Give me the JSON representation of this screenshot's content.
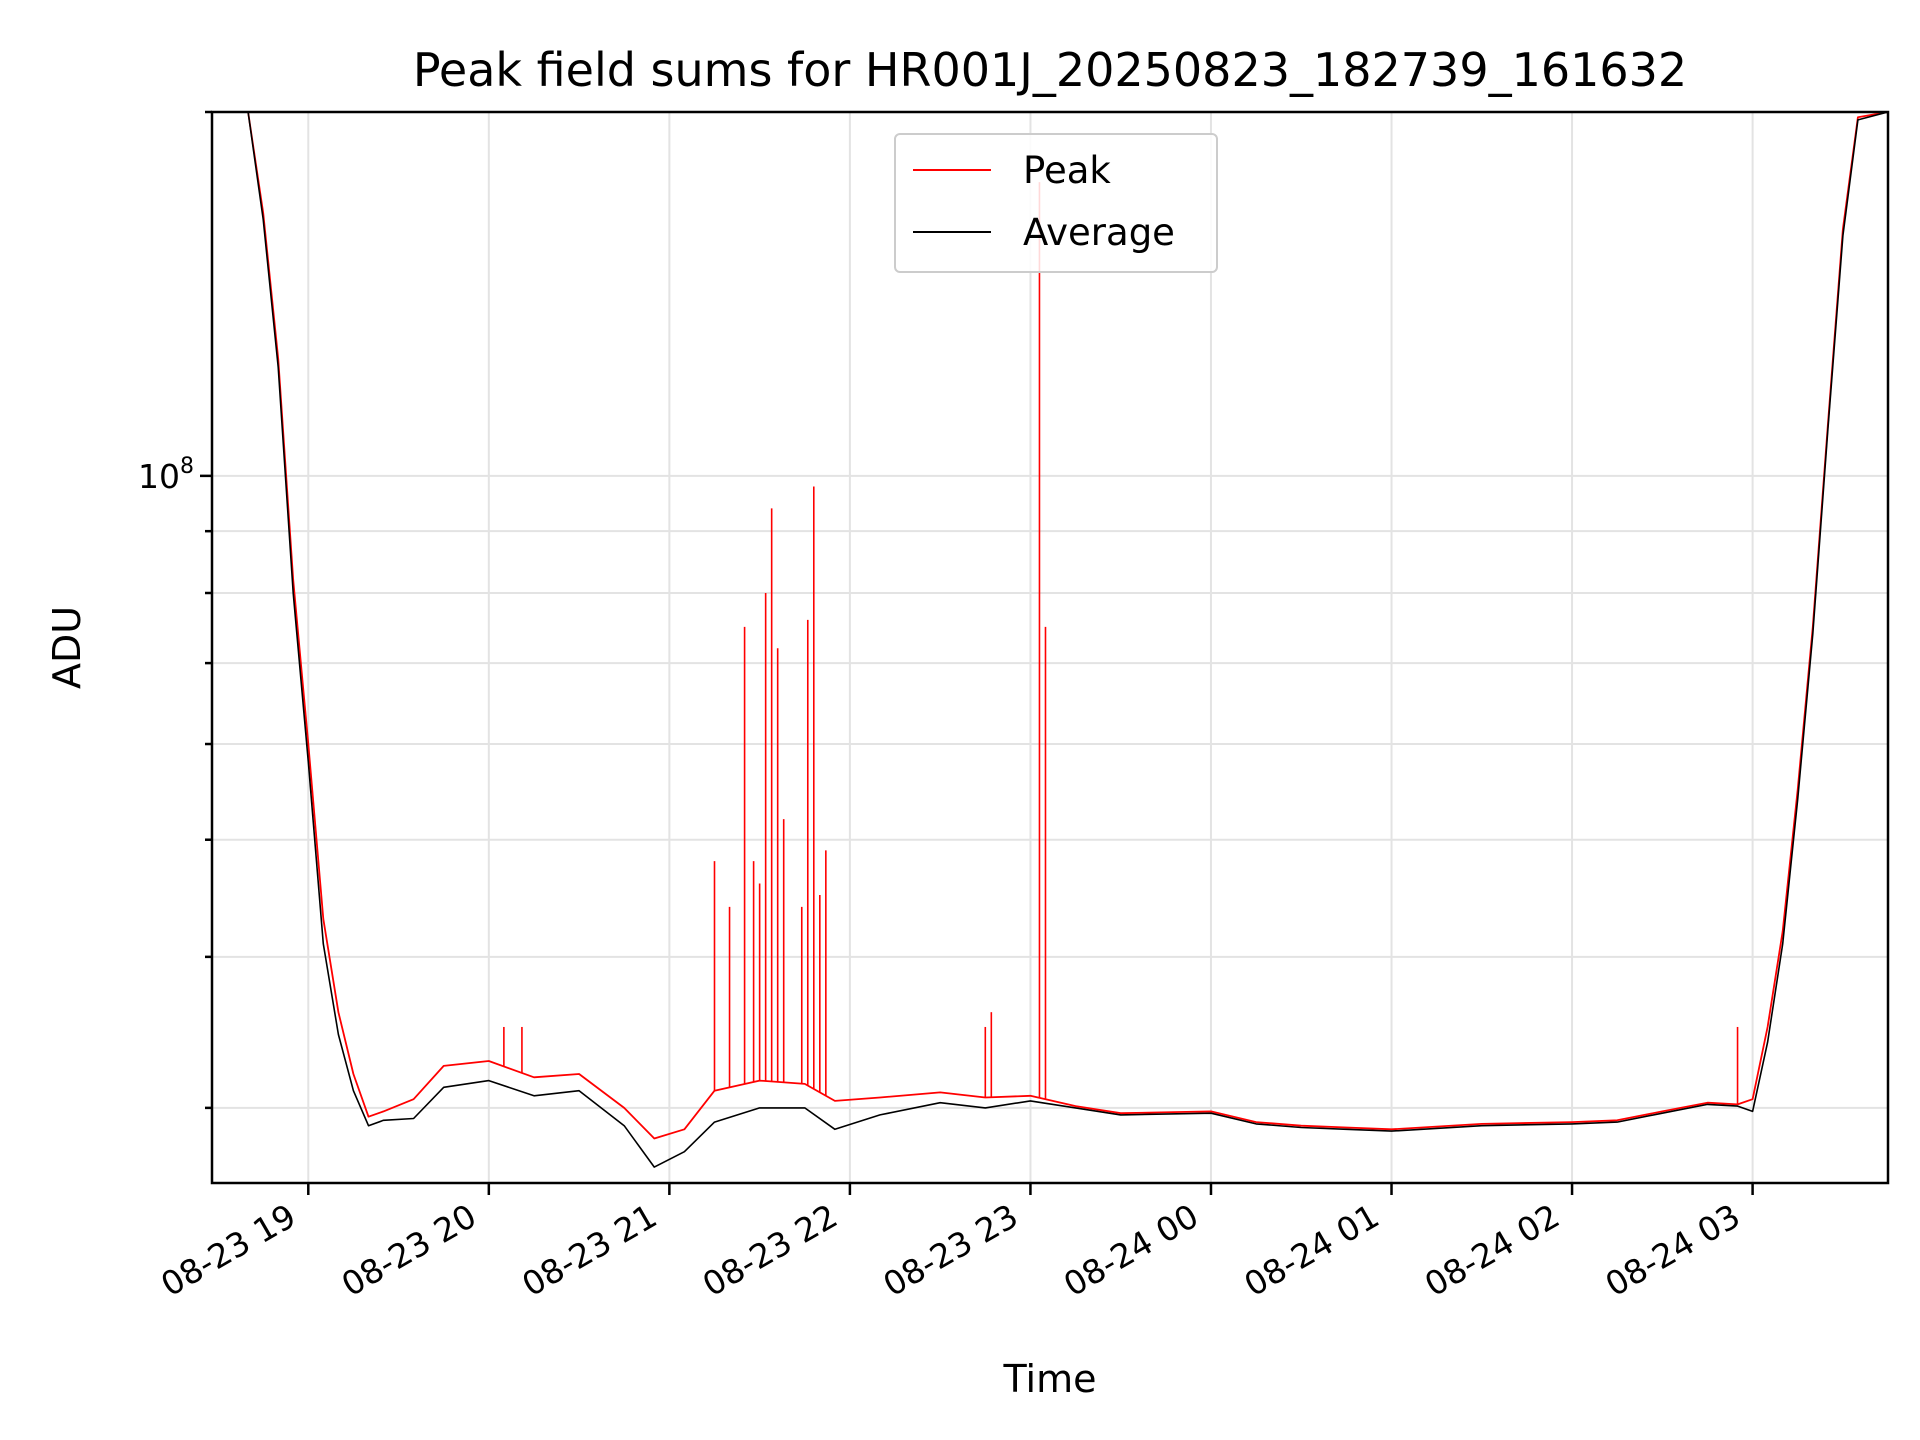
{
  "chart_data": {
    "type": "line",
    "title": "Peak field sums for HR001J_20250823_182739_161632",
    "xlabel": "Time",
    "ylabel": "ADU",
    "y_scale": "log",
    "xlim": [
      "2025-08-23 18:28",
      "2025-08-24 03:45"
    ],
    "ylim": [
      26000000,
      200000000
    ],
    "grid": "major and minor",
    "legend": "upper center",
    "x_tick_labels": [
      "08-23 19",
      "08-23 20",
      "08-23 21",
      "08-23 22",
      "08-23 23",
      "08-24 00",
      "08-24 01",
      "08-24 02",
      "08-24 03"
    ],
    "x_ticks": [
      "2025-08-23 19:00",
      "2025-08-23 20:00",
      "2025-08-23 21:00",
      "2025-08-23 22:00",
      "2025-08-23 23:00",
      "2025-08-24 00:00",
      "2025-08-24 01:00",
      "2025-08-24 02:00",
      "2025-08-24 03:00"
    ],
    "y_major_ticks": [
      {
        "value": 100000000,
        "base": "10",
        "exponent": "8"
      }
    ],
    "y_minor_ticks": [
      30000000,
      40000000,
      50000000,
      60000000,
      70000000,
      80000000,
      90000000,
      200000000
    ],
    "series": [
      {
        "name": "Peak",
        "color": "#ff0000",
        "x": [
          "2025-08-23 18:28",
          "2025-08-23 18:40",
          "2025-08-23 18:45",
          "2025-08-23 18:50",
          "2025-08-23 18:55",
          "2025-08-23 19:00",
          "2025-08-23 19:05",
          "2025-08-23 19:10",
          "2025-08-23 19:15",
          "2025-08-23 19:20",
          "2025-08-23 19:25",
          "2025-08-23 19:35",
          "2025-08-23 19:45",
          "2025-08-23 20:00",
          "2025-08-23 20:15",
          "2025-08-23 20:30",
          "2025-08-23 20:45",
          "2025-08-23 20:55",
          "2025-08-23 21:05",
          "2025-08-23 21:15",
          "2025-08-23 21:30",
          "2025-08-23 21:45",
          "2025-08-23 21:55",
          "2025-08-23 22:10",
          "2025-08-23 22:30",
          "2025-08-23 22:45",
          "2025-08-23 23:00",
          "2025-08-23 23:15",
          "2025-08-23 23:30",
          "2025-08-24 00:00",
          "2025-08-24 00:15",
          "2025-08-24 00:30",
          "2025-08-24 00:45",
          "2025-08-24 01:00",
          "2025-08-24 01:30",
          "2025-08-24 02:00",
          "2025-08-24 02:15",
          "2025-08-24 02:30",
          "2025-08-24 02:45",
          "2025-08-24 02:55",
          "2025-08-24 03:00",
          "2025-08-24 03:05",
          "2025-08-24 03:10",
          "2025-08-24 03:15",
          "2025-08-24 03:20",
          "2025-08-24 03:25",
          "2025-08-24 03:30",
          "2025-08-24 03:35",
          "2025-08-24 03:45"
        ],
        "y": [
          200000000,
          200000000,
          165000000,
          125000000,
          82000000,
          60000000,
          43000000,
          36000000,
          32000000,
          29500000,
          29800000,
          30500000,
          32500000,
          32800000,
          31800000,
          32000000,
          30000000,
          28300000,
          28800000,
          31000000,
          31600000,
          31400000,
          30400000,
          30600000,
          30900000,
          30600000,
          30700000,
          30100000,
          29700000,
          29800000,
          29200000,
          29000000,
          28900000,
          28800000,
          29100000,
          29200000,
          29300000,
          29800000,
          30300000,
          30200000,
          30500000,
          35000000,
          42000000,
          55000000,
          75000000,
          110000000,
          160000000,
          198000000,
          200000000
        ],
        "spikes": [
          {
            "x": "2025-08-23 21:15",
            "y": 48000000
          },
          {
            "x": "2025-08-23 21:20",
            "y": 44000000
          },
          {
            "x": "2025-08-23 21:25",
            "y": 75000000
          },
          {
            "x": "2025-08-23 21:28",
            "y": 48000000
          },
          {
            "x": "2025-08-23 21:30",
            "y": 46000000
          },
          {
            "x": "2025-08-23 21:32",
            "y": 80000000
          },
          {
            "x": "2025-08-23 21:34",
            "y": 94000000
          },
          {
            "x": "2025-08-23 21:36",
            "y": 72000000
          },
          {
            "x": "2025-08-23 21:38",
            "y": 52000000
          },
          {
            "x": "2025-08-23 21:44",
            "y": 44000000
          },
          {
            "x": "2025-08-23 21:46",
            "y": 76000000
          },
          {
            "x": "2025-08-23 21:48",
            "y": 98000000
          },
          {
            "x": "2025-08-23 21:50",
            "y": 45000000
          },
          {
            "x": "2025-08-23 21:52",
            "y": 49000000
          },
          {
            "x": "2025-08-23 22:45",
            "y": 35000000
          },
          {
            "x": "2025-08-23 22:47",
            "y": 36000000
          },
          {
            "x": "2025-08-23 23:03",
            "y": 175000000
          },
          {
            "x": "2025-08-23 23:05",
            "y": 75000000
          },
          {
            "x": "2025-08-23 20:05",
            "y": 35000000
          },
          {
            "x": "2025-08-23 20:11",
            "y": 35000000
          },
          {
            "x": "2025-08-24 02:55",
            "y": 35000000
          }
        ]
      },
      {
        "name": "Average",
        "color": "#000000",
        "x": [
          "2025-08-23 18:28",
          "2025-08-23 18:40",
          "2025-08-23 18:45",
          "2025-08-23 18:50",
          "2025-08-23 18:55",
          "2025-08-23 19:00",
          "2025-08-23 19:05",
          "2025-08-23 19:10",
          "2025-08-23 19:15",
          "2025-08-23 19:20",
          "2025-08-23 19:25",
          "2025-08-23 19:35",
          "2025-08-23 19:45",
          "2025-08-23 20:00",
          "2025-08-23 20:15",
          "2025-08-23 20:30",
          "2025-08-23 20:45",
          "2025-08-23 20:55",
          "2025-08-23 21:05",
          "2025-08-23 21:15",
          "2025-08-23 21:30",
          "2025-08-23 21:45",
          "2025-08-23 21:55",
          "2025-08-23 22:10",
          "2025-08-23 22:30",
          "2025-08-23 22:45",
          "2025-08-23 23:00",
          "2025-08-23 23:15",
          "2025-08-23 23:30",
          "2025-08-24 00:00",
          "2025-08-24 00:15",
          "2025-08-24 00:30",
          "2025-08-24 00:45",
          "2025-08-24 01:00",
          "2025-08-24 01:30",
          "2025-08-24 02:00",
          "2025-08-24 02:15",
          "2025-08-24 02:30",
          "2025-08-24 02:45",
          "2025-08-24 02:55",
          "2025-08-24 03:00",
          "2025-08-24 03:05",
          "2025-08-24 03:10",
          "2025-08-24 03:15",
          "2025-08-24 03:20",
          "2025-08-24 03:25",
          "2025-08-24 03:30",
          "2025-08-24 03:35",
          "2025-08-24 03:45"
        ],
        "y": [
          200000000,
          200000000,
          163000000,
          123000000,
          80000000,
          58000000,
          41000000,
          34500000,
          31000000,
          29000000,
          29300000,
          29400000,
          31200000,
          31600000,
          30700000,
          31000000,
          29000000,
          26800000,
          27600000,
          29200000,
          30000000,
          30000000,
          28800000,
          29600000,
          30300000,
          30000000,
          30400000,
          30000000,
          29600000,
          29700000,
          29100000,
          28900000,
          28800000,
          28700000,
          29000000,
          29100000,
          29200000,
          29700000,
          30200000,
          30100000,
          29800000,
          34000000,
          41000000,
          54000000,
          74000000,
          109000000,
          158000000,
          197000000,
          200000000
        ]
      }
    ]
  }
}
